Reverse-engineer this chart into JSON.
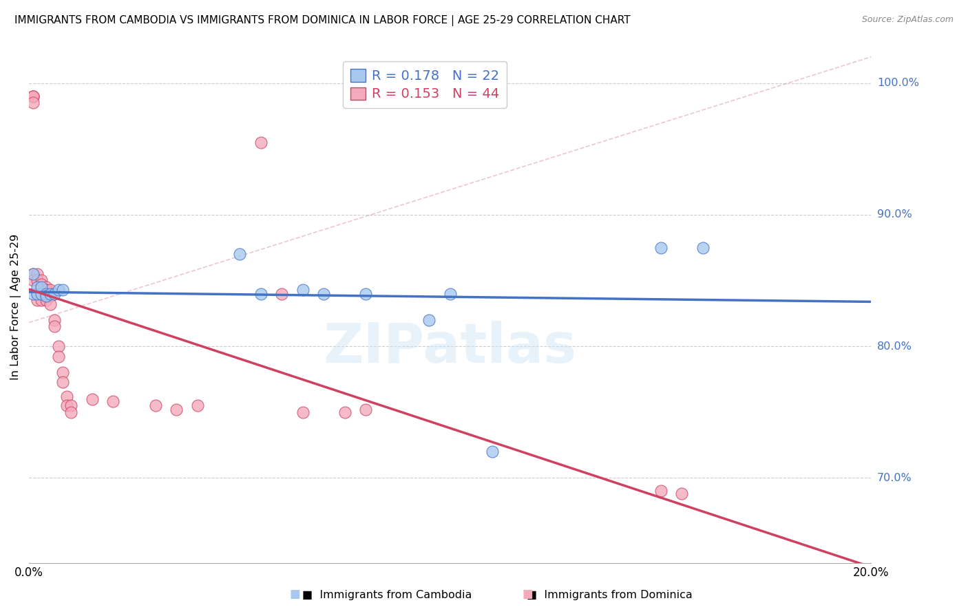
{
  "title": "IMMIGRANTS FROM CAMBODIA VS IMMIGRANTS FROM DOMINICA IN LABOR FORCE | AGE 25-29 CORRELATION CHART",
  "source": "Source: ZipAtlas.com",
  "ylabel": "In Labor Force | Age 25-29",
  "ylabel_right_labels": [
    "100.0%",
    "90.0%",
    "80.0%",
    "70.0%"
  ],
  "ylabel_right_values": [
    1.0,
    0.9,
    0.8,
    0.7
  ],
  "xlim": [
    0.0,
    0.2
  ],
  "ylim": [
    0.635,
    1.025
  ],
  "R_cambodia": 0.178,
  "N_cambodia": 22,
  "R_dominica": 0.153,
  "N_dominica": 44,
  "color_cambodia_fill": "#A8C8F0",
  "color_cambodia_edge": "#4472C4",
  "color_dominica_fill": "#F4AABC",
  "color_dominica_edge": "#D04060",
  "color_line_cambodia": "#4472C4",
  "color_line_dominica": "#D04060",
  "color_diag_line": "#E0A0B5",
  "background": "#FFFFFF",
  "cambodia_x": [
    0.001,
    0.001,
    0.002,
    0.002,
    0.003,
    0.003,
    0.004,
    0.004,
    0.005,
    0.006,
    0.007,
    0.008,
    0.05,
    0.055,
    0.065,
    0.07,
    0.08,
    0.095,
    0.1,
    0.11,
    0.15,
    0.16
  ],
  "cambodia_y": [
    0.84,
    0.855,
    0.84,
    0.845,
    0.84,
    0.845,
    0.84,
    0.838,
    0.84,
    0.84,
    0.843,
    0.843,
    0.87,
    0.84,
    0.843,
    0.84,
    0.84,
    0.82,
    0.84,
    0.72,
    0.875,
    0.875
  ],
  "dominica_x": [
    0.001,
    0.001,
    0.001,
    0.001,
    0.001,
    0.001,
    0.002,
    0.002,
    0.002,
    0.002,
    0.003,
    0.003,
    0.003,
    0.003,
    0.003,
    0.004,
    0.004,
    0.004,
    0.004,
    0.005,
    0.005,
    0.005,
    0.006,
    0.006,
    0.007,
    0.007,
    0.008,
    0.008,
    0.009,
    0.009,
    0.01,
    0.01,
    0.015,
    0.02,
    0.03,
    0.035,
    0.04,
    0.055,
    0.06,
    0.065,
    0.075,
    0.08,
    0.15,
    0.155
  ],
  "dominica_y": [
    0.99,
    0.99,
    0.99,
    0.985,
    0.855,
    0.85,
    0.855,
    0.85,
    0.84,
    0.835,
    0.85,
    0.847,
    0.843,
    0.84,
    0.835,
    0.845,
    0.843,
    0.838,
    0.835,
    0.843,
    0.838,
    0.832,
    0.82,
    0.815,
    0.8,
    0.792,
    0.78,
    0.773,
    0.762,
    0.755,
    0.755,
    0.75,
    0.76,
    0.758,
    0.755,
    0.752,
    0.755,
    0.955,
    0.84,
    0.75,
    0.75,
    0.752,
    0.69,
    0.688
  ]
}
